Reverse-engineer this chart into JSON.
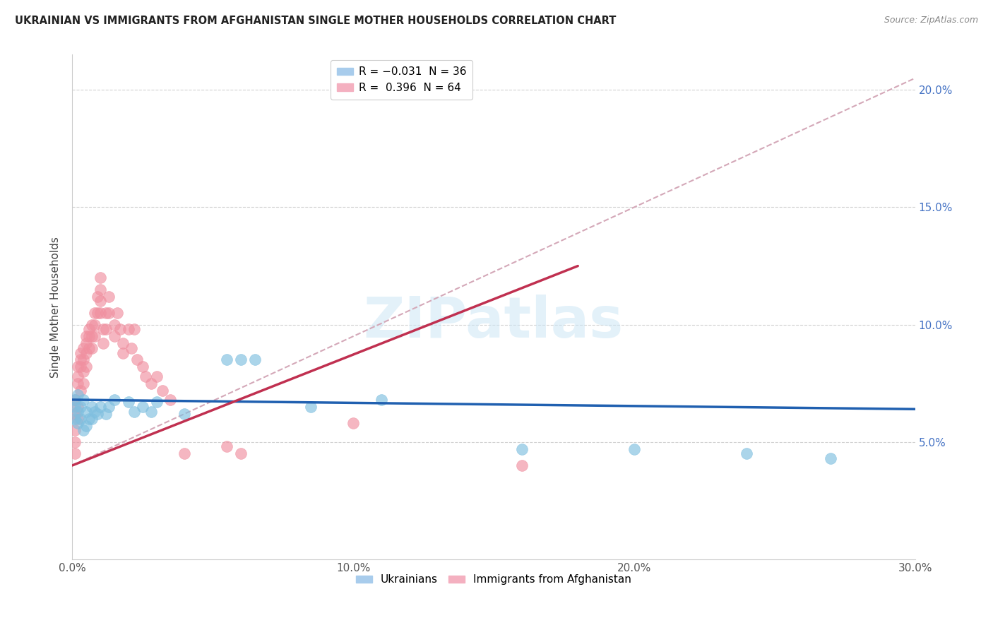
{
  "title": "UKRAINIAN VS IMMIGRANTS FROM AFGHANISTAN SINGLE MOTHER HOUSEHOLDS CORRELATION CHART",
  "source": "Source: ZipAtlas.com",
  "ylabel": "Single Mother Households",
  "watermark_text": "ZIPatlas",
  "blue_color": "#7fbfdf",
  "blue_edge_color": "#7fbfdf",
  "pink_color": "#f090a0",
  "pink_edge_color": "#f090a0",
  "blue_line_color": "#2060b0",
  "pink_line_color": "#c03050",
  "pink_dash_color": "#d4a8b8",
  "xlim": [
    0.0,
    0.3
  ],
  "ylim": [
    0.0,
    0.215
  ],
  "yticks": [
    0.05,
    0.1,
    0.15,
    0.2
  ],
  "xticks": [
    0.0,
    0.05,
    0.1,
    0.15,
    0.2,
    0.25,
    0.3
  ],
  "xtick_labels": [
    "0.0%",
    "",
    "10.0%",
    "",
    "20.0%",
    "",
    "30.0%"
  ],
  "blue_R": -0.031,
  "blue_N": 36,
  "pink_R": 0.396,
  "pink_N": 64,
  "blue_x": [
    0.001,
    0.001,
    0.001,
    0.002,
    0.002,
    0.002,
    0.003,
    0.003,
    0.004,
    0.004,
    0.005,
    0.005,
    0.006,
    0.007,
    0.007,
    0.008,
    0.009,
    0.01,
    0.012,
    0.013,
    0.015,
    0.02,
    0.022,
    0.025,
    0.028,
    0.03,
    0.04,
    0.055,
    0.06,
    0.065,
    0.085,
    0.11,
    0.16,
    0.2,
    0.24,
    0.27
  ],
  "blue_y": [
    0.068,
    0.065,
    0.06,
    0.07,
    0.063,
    0.058,
    0.065,
    0.06,
    0.068,
    0.055,
    0.063,
    0.057,
    0.06,
    0.065,
    0.06,
    0.063,
    0.062,
    0.065,
    0.062,
    0.065,
    0.068,
    0.067,
    0.063,
    0.065,
    0.063,
    0.067,
    0.062,
    0.085,
    0.085,
    0.085,
    0.065,
    0.068,
    0.047,
    0.047,
    0.045,
    0.043
  ],
  "pink_x": [
    0.001,
    0.001,
    0.001,
    0.001,
    0.001,
    0.002,
    0.002,
    0.002,
    0.002,
    0.002,
    0.003,
    0.003,
    0.003,
    0.003,
    0.004,
    0.004,
    0.004,
    0.004,
    0.005,
    0.005,
    0.005,
    0.005,
    0.006,
    0.006,
    0.006,
    0.007,
    0.007,
    0.007,
    0.008,
    0.008,
    0.008,
    0.009,
    0.009,
    0.01,
    0.01,
    0.01,
    0.01,
    0.011,
    0.011,
    0.012,
    0.012,
    0.013,
    0.013,
    0.015,
    0.015,
    0.016,
    0.017,
    0.018,
    0.018,
    0.02,
    0.021,
    0.022,
    0.023,
    0.025,
    0.026,
    0.028,
    0.03,
    0.032,
    0.035,
    0.04,
    0.055,
    0.06,
    0.1,
    0.16
  ],
  "pink_y": [
    0.068,
    0.062,
    0.055,
    0.05,
    0.045,
    0.082,
    0.078,
    0.075,
    0.065,
    0.06,
    0.088,
    0.085,
    0.082,
    0.072,
    0.09,
    0.085,
    0.08,
    0.075,
    0.095,
    0.092,
    0.088,
    0.082,
    0.098,
    0.095,
    0.09,
    0.1,
    0.095,
    0.09,
    0.105,
    0.1,
    0.095,
    0.112,
    0.105,
    0.12,
    0.115,
    0.11,
    0.105,
    0.098,
    0.092,
    0.105,
    0.098,
    0.112,
    0.105,
    0.1,
    0.095,
    0.105,
    0.098,
    0.092,
    0.088,
    0.098,
    0.09,
    0.098,
    0.085,
    0.082,
    0.078,
    0.075,
    0.078,
    0.072,
    0.068,
    0.045,
    0.048,
    0.045,
    0.058,
    0.04
  ]
}
